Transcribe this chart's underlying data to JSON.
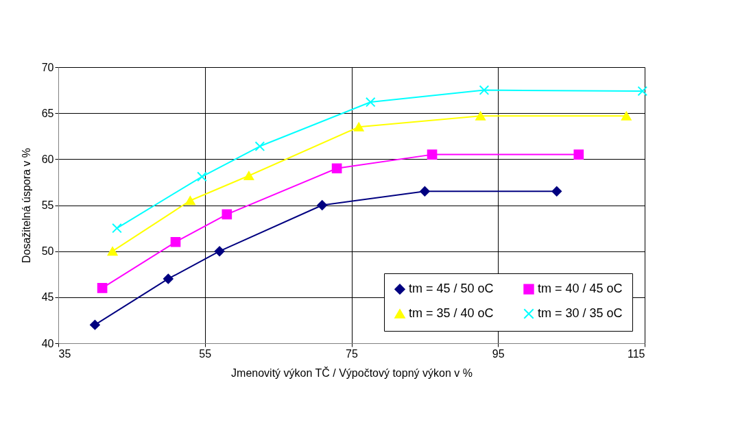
{
  "chart_data": {
    "type": "line",
    "xlabel": "Jmenovitý výkon  TČ / Výpočtový topný výkon v %",
    "ylabel": "Dosažitelná úspora v %",
    "xlim": [
      35,
      115
    ],
    "xticks": [
      35,
      55,
      75,
      95,
      115
    ],
    "ylim": [
      40,
      70
    ],
    "yticks": [
      40,
      45,
      50,
      55,
      60,
      65,
      70
    ],
    "grid": true,
    "legend": "bottom right",
    "series": [
      {
        "name": "tm = 45 / 50 oC",
        "color": "#000080",
        "marker": "diamond",
        "x": [
          40,
          50,
          57,
          71,
          85,
          103
        ],
        "values": [
          42,
          47,
          50,
          55,
          56.5,
          56.5
        ]
      },
      {
        "name": "tm = 40 / 45 oC",
        "color": "#ff00ff",
        "marker": "square",
        "x": [
          41,
          51,
          58,
          73,
          86,
          106
        ],
        "values": [
          46,
          51,
          54,
          59,
          60.5,
          60.5
        ]
      },
      {
        "name": "tm = 35 / 40 oC",
        "color": "#ffff00",
        "marker": "triangle",
        "x": [
          42.4,
          53,
          61,
          76,
          92.6,
          112.5
        ],
        "values": [
          50,
          55.5,
          58.2,
          63.5,
          64.7,
          64.7
        ]
      },
      {
        "name": "tm = 30 / 35 oC",
        "color": "#00ffff",
        "marker": "cross",
        "x": [
          43,
          54.6,
          62.5,
          77.6,
          93.1,
          114.7
        ],
        "values": [
          52.5,
          58.1,
          61.4,
          66.2,
          67.5,
          67.4
        ]
      }
    ]
  }
}
